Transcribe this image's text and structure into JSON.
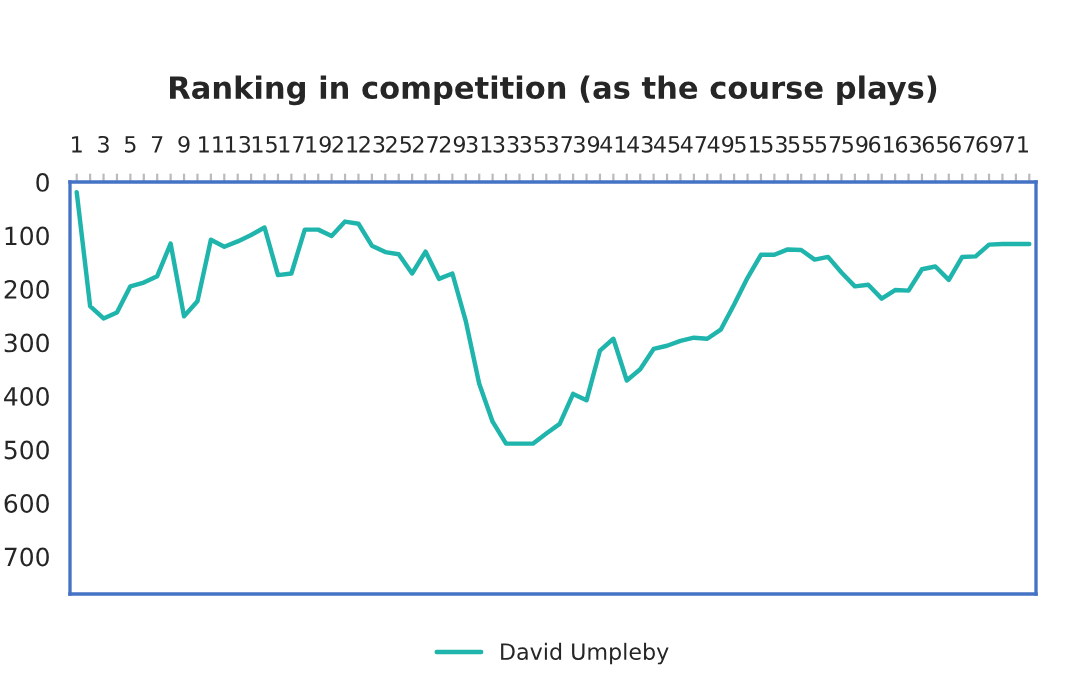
{
  "chart_data": {
    "type": "line",
    "title": "Ranking in competition (as the course plays)",
    "categories": [
      "1",
      null,
      "3",
      null,
      "5",
      null,
      "7",
      null,
      "9",
      null,
      "11",
      null,
      "13",
      null,
      "15",
      null,
      "17",
      null,
      "19",
      null,
      "21",
      null,
      "23",
      null,
      "25",
      null,
      "27",
      null,
      "29",
      null,
      "31",
      null,
      "33",
      null,
      "35",
      null,
      "37",
      null,
      "39",
      null,
      "41",
      null,
      "43",
      null,
      "45",
      null,
      "47",
      null,
      "49",
      null,
      "51",
      null,
      "53",
      null,
      "55",
      null,
      "57",
      null,
      "59",
      null,
      "61",
      null,
      "63",
      null,
      "65",
      null,
      "67",
      null,
      "69",
      null,
      "71",
      null
    ],
    "series": [
      {
        "name": "David Umpleby",
        "color": "#1fb5ac",
        "values": [
          19,
          232,
          255,
          244,
          195,
          188,
          176,
          115,
          251,
          223,
          108,
          121,
          111,
          99,
          85,
          174,
          171,
          89,
          89,
          101,
          74,
          78,
          119,
          131,
          135,
          171,
          130,
          181,
          171,
          260,
          377,
          448,
          489,
          489,
          489,
          470,
          452,
          396,
          408,
          315,
          293,
          371,
          350,
          312,
          306,
          297,
          291,
          293,
          276,
          229,
          179,
          136,
          136,
          126,
          127,
          145,
          140,
          169,
          195,
          192,
          218,
          202,
          203,
          163,
          158,
          183,
          140,
          139,
          117,
          116,
          116,
          116
        ]
      }
    ],
    "ylim": [
      770,
      0
    ],
    "yticks": [
      0,
      100,
      200,
      300,
      400,
      500,
      600,
      700
    ],
    "grid": false,
    "legend": "bottom",
    "marker": "none",
    "line_style": "solid"
  }
}
